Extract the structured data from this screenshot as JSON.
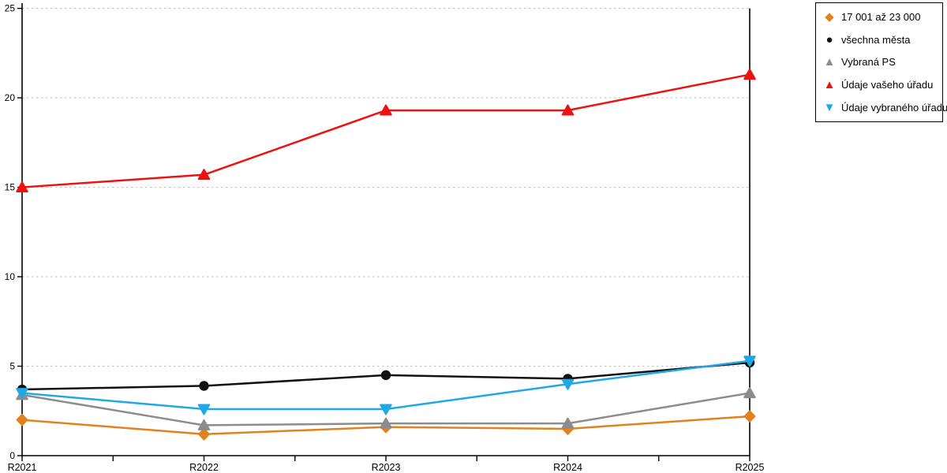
{
  "chart_data": {
    "type": "line",
    "title": "",
    "xlabel": "",
    "ylabel": "",
    "categories": [
      "R2021",
      "R2022",
      "R2023",
      "R2024",
      "R2025"
    ],
    "series": [
      {
        "name": "17 001 až 23 000",
        "color": "#E2821E",
        "marker": "diamond",
        "values": [
          2.0,
          1.2,
          1.6,
          1.5,
          2.2
        ]
      },
      {
        "name": "všechna města",
        "color": "#111111",
        "marker": "circle",
        "values": [
          3.7,
          3.9,
          4.5,
          4.3,
          5.2
        ]
      },
      {
        "name": "Vybraná PS",
        "color": "#8C8C8C",
        "marker": "triangle-up",
        "values": [
          3.4,
          1.7,
          1.8,
          1.8,
          3.5
        ]
      },
      {
        "name": "Údaje vašeho úřadu",
        "color": "#EE1111",
        "marker": "triangle-up",
        "values": [
          15.0,
          15.7,
          19.3,
          19.3,
          21.3
        ]
      },
      {
        "name": "Údaje vybraného úřadu",
        "color": "#1FA8E8",
        "marker": "triangle-down",
        "values": [
          3.5,
          2.6,
          2.6,
          4.0,
          5.3
        ]
      }
    ],
    "ylim": [
      0,
      25
    ],
    "yticks": [
      0,
      5,
      10,
      15,
      20,
      25
    ],
    "grid": "horizontal-dashed",
    "legend_position": "top-right"
  },
  "style": {
    "axis_color": "#000000",
    "gridline_color": "#C4C4C4",
    "background": "#FFFFFF",
    "legend_border": "#000000"
  }
}
